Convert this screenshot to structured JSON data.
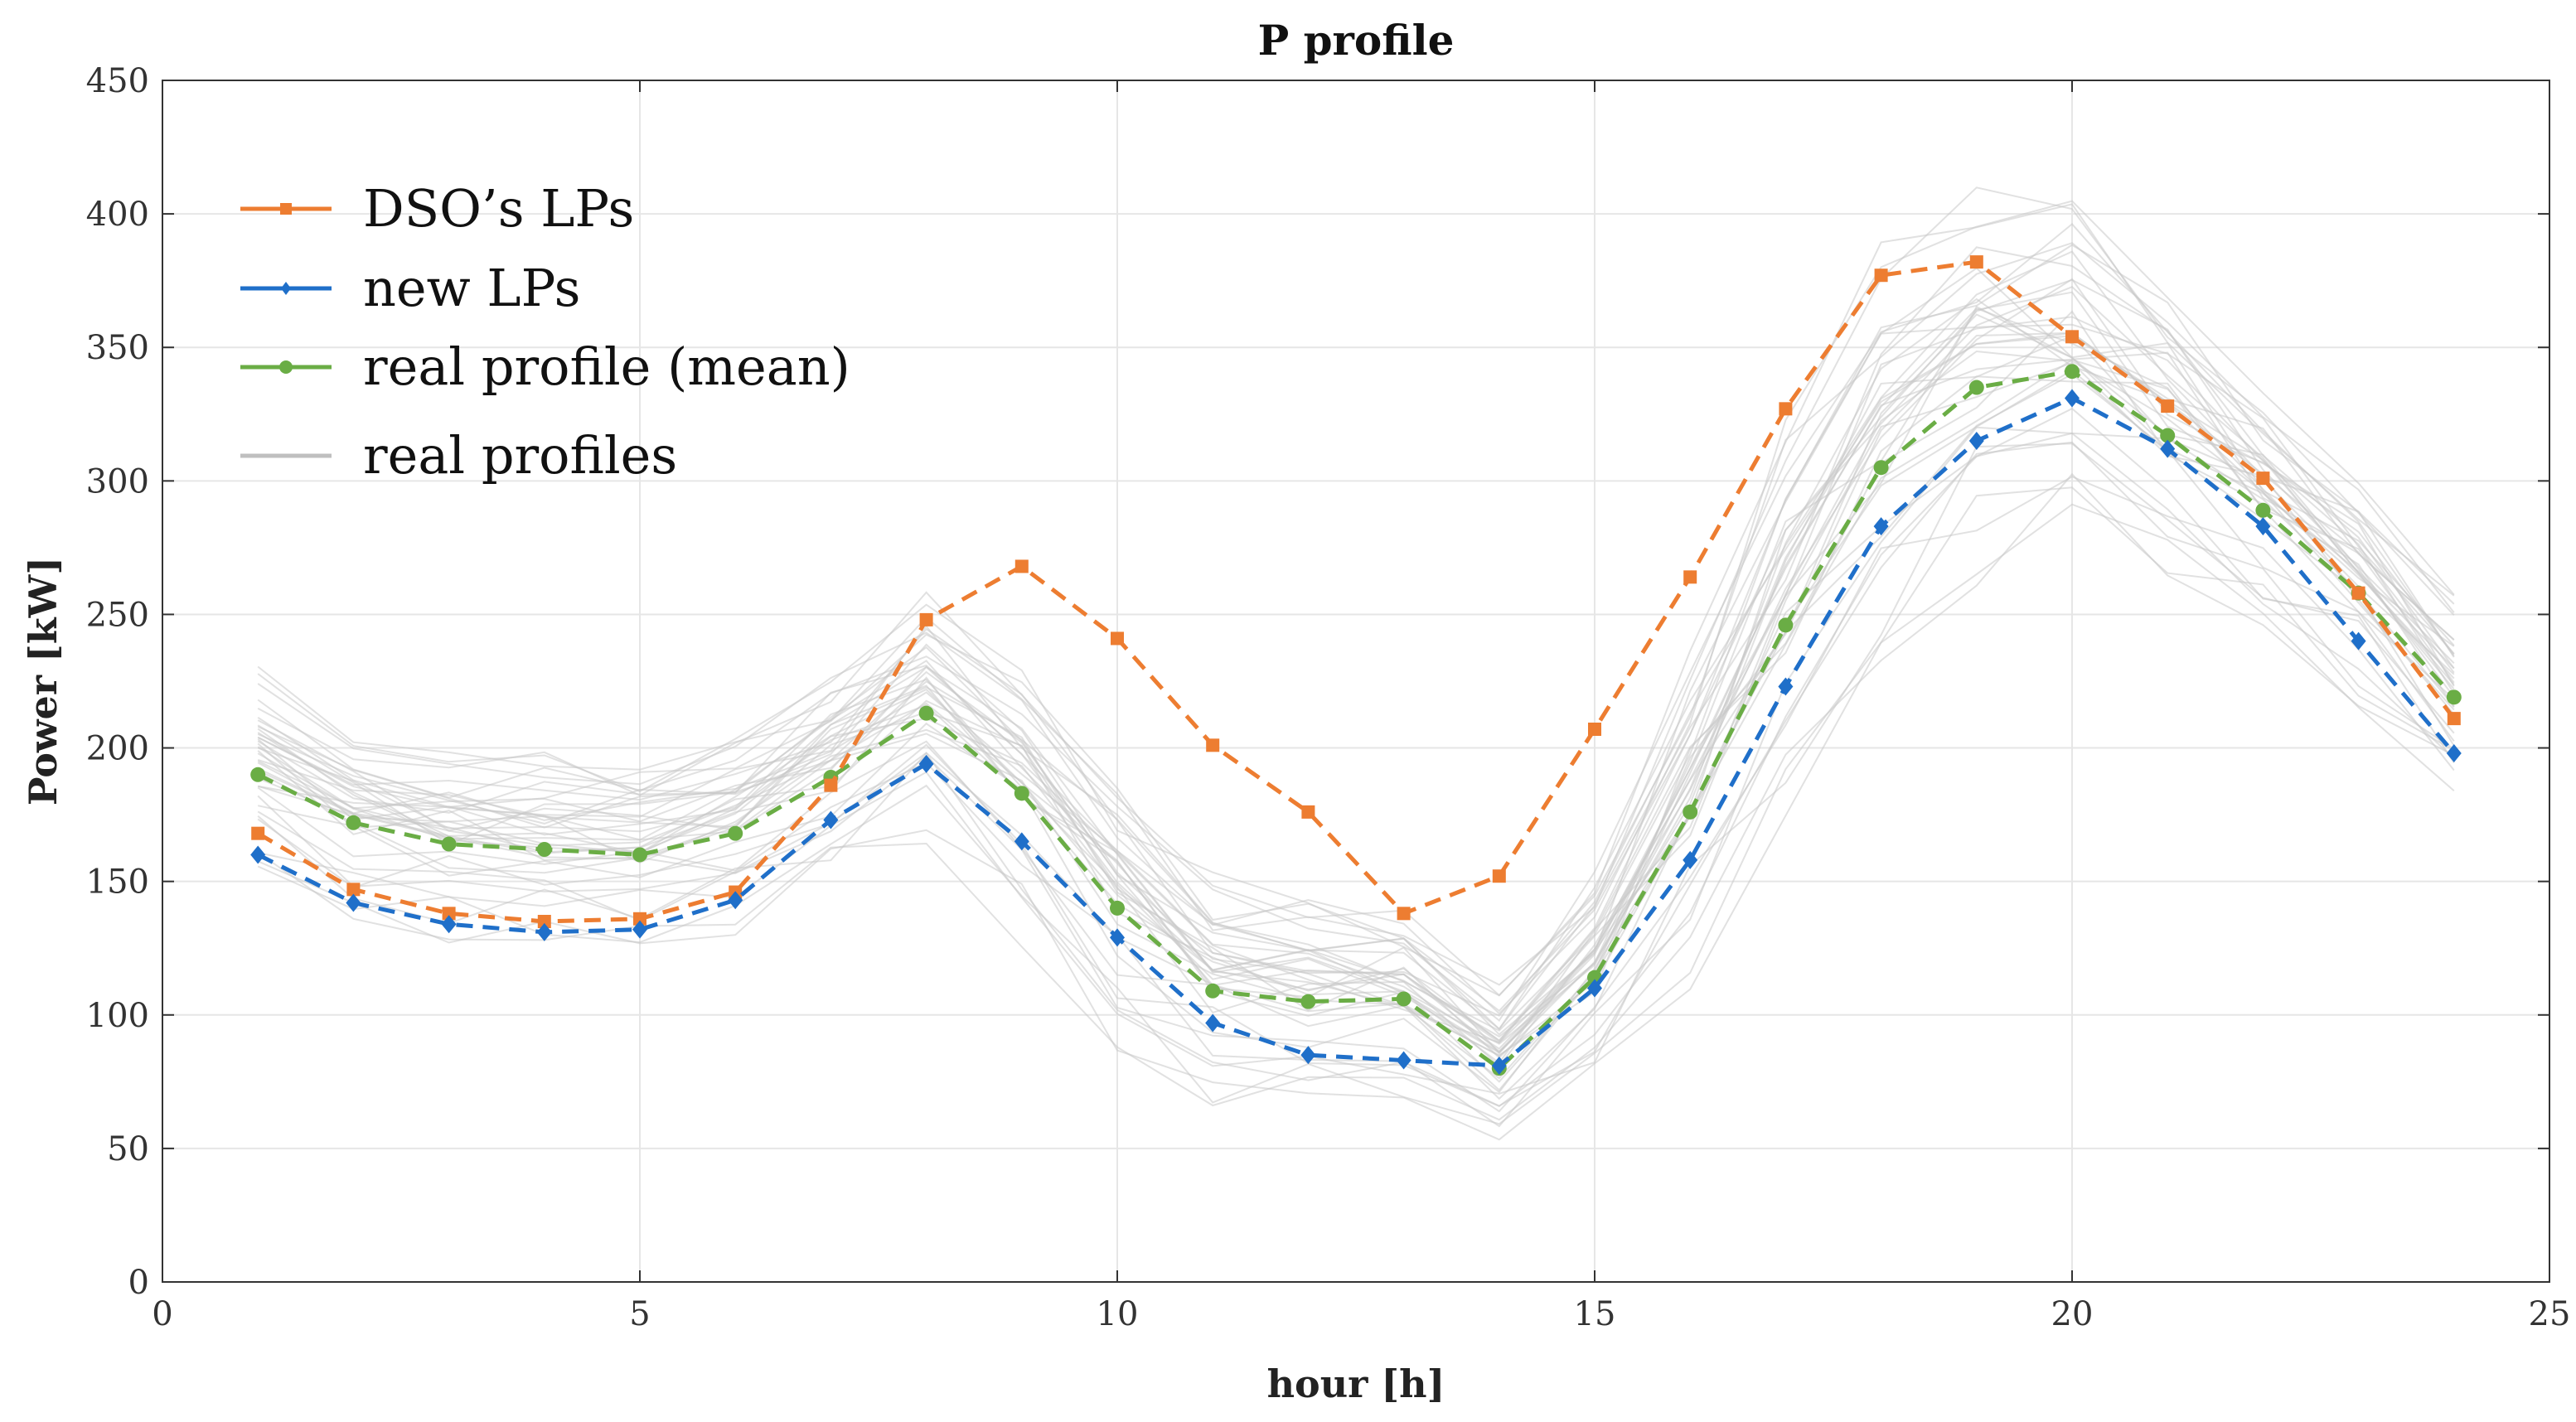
{
  "chart_data": {
    "type": "line",
    "title": "P profile",
    "xlabel": "hour [h]",
    "ylabel": "Power [kW]",
    "xlim": [
      0,
      25
    ],
    "ylim": [
      0,
      450
    ],
    "xticks": [
      "0",
      "5",
      "10",
      "15",
      "20",
      "25"
    ],
    "yticks": [
      "0",
      "50",
      "100",
      "150",
      "200",
      "250",
      "300",
      "350",
      "400",
      "450"
    ],
    "grid": true,
    "legend_position": "top-left",
    "x": [
      1,
      2,
      3,
      4,
      5,
      6,
      7,
      8,
      9,
      10,
      11,
      12,
      13,
      14,
      15,
      16,
      17,
      18,
      19,
      20,
      21,
      22,
      23,
      24
    ],
    "series": [
      {
        "name": "DSO’s LPs",
        "color": "#ED7D31",
        "style": "dashed",
        "marker": "square",
        "values": [
          168,
          147,
          138,
          135,
          136,
          146,
          186,
          248,
          268,
          241,
          201,
          176,
          138,
          152,
          207,
          264,
          327,
          377,
          382,
          354,
          328,
          301,
          258,
          211
        ]
      },
      {
        "name": "new LPs",
        "color": "#1F6FC9",
        "style": "dashed",
        "marker": "diamond",
        "values": [
          160,
          142,
          134,
          131,
          132,
          143,
          173,
          194,
          165,
          129,
          97,
          85,
          83,
          81,
          110,
          158,
          223,
          283,
          315,
          331,
          312,
          283,
          240,
          198
        ]
      },
      {
        "name": "real profile (mean)",
        "color": "#6AAD45",
        "style": "dashed",
        "marker": "circle",
        "values": [
          190,
          172,
          164,
          162,
          160,
          168,
          189,
          213,
          183,
          140,
          109,
          105,
          106,
          80,
          114,
          176,
          246,
          305,
          335,
          341,
          317,
          289,
          258,
          219
        ]
      }
    ],
    "real_profiles": {
      "name": "real profiles",
      "color": "#C8C8C8",
      "count": 40,
      "note_spread": [
        32,
        30,
        28,
        28,
        28,
        30,
        34,
        38,
        45,
        42,
        35,
        32,
        30,
        25,
        38,
        50,
        60,
        65,
        60,
        50,
        45,
        40,
        35,
        30
      ]
    }
  }
}
